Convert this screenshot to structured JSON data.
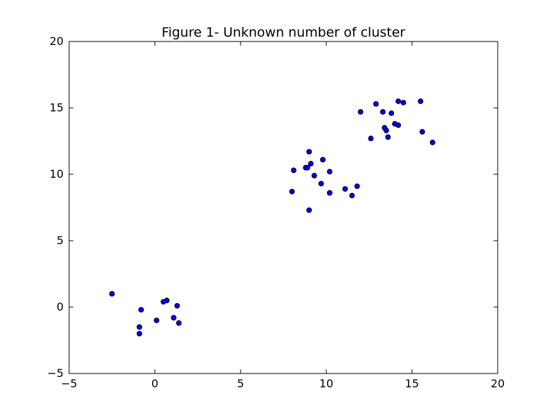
{
  "chart_data": {
    "type": "scatter",
    "title": "Figure 1- Unknown number of cluster",
    "xlabel": "",
    "ylabel": "",
    "xlim": [
      -5,
      20
    ],
    "ylim": [
      -5,
      20
    ],
    "xticks": [
      -5,
      0,
      5,
      10,
      15,
      20
    ],
    "yticks": [
      -5,
      0,
      5,
      10,
      15,
      20
    ],
    "grid": false,
    "legend": "none",
    "marker_color": "#0000ff",
    "series": [
      {
        "points": [
          {
            "x": -2.5,
            "y": 1.0
          },
          {
            "x": -0.8,
            "y": -0.2
          },
          {
            "x": -0.9,
            "y": -1.5
          },
          {
            "x": -0.9,
            "y": -2.0
          },
          {
            "x": 0.1,
            "y": -1.0
          },
          {
            "x": 0.5,
            "y": 0.4
          },
          {
            "x": 0.7,
            "y": 0.5
          },
          {
            "x": 1.1,
            "y": -0.8
          },
          {
            "x": 1.3,
            "y": 0.1
          },
          {
            "x": 1.4,
            "y": -1.2
          },
          {
            "x": 8.0,
            "y": 8.7
          },
          {
            "x": 8.1,
            "y": 10.3
          },
          {
            "x": 8.8,
            "y": 10.5
          },
          {
            "x": 8.9,
            "y": 10.5
          },
          {
            "x": 9.0,
            "y": 7.3
          },
          {
            "x": 9.0,
            "y": 11.7
          },
          {
            "x": 9.1,
            "y": 10.8
          },
          {
            "x": 9.3,
            "y": 9.9
          },
          {
            "x": 9.7,
            "y": 9.3
          },
          {
            "x": 9.8,
            "y": 11.1
          },
          {
            "x": 10.2,
            "y": 10.2
          },
          {
            "x": 10.2,
            "y": 8.6
          },
          {
            "x": 11.1,
            "y": 8.9
          },
          {
            "x": 11.5,
            "y": 8.4
          },
          {
            "x": 11.8,
            "y": 9.1
          },
          {
            "x": 12.0,
            "y": 14.7
          },
          {
            "x": 12.6,
            "y": 12.7
          },
          {
            "x": 12.9,
            "y": 15.3
          },
          {
            "x": 13.3,
            "y": 14.7
          },
          {
            "x": 13.4,
            "y": 13.5
          },
          {
            "x": 13.5,
            "y": 13.3
          },
          {
            "x": 13.6,
            "y": 12.8
          },
          {
            "x": 13.8,
            "y": 14.6
          },
          {
            "x": 14.0,
            "y": 13.8
          },
          {
            "x": 14.2,
            "y": 13.7
          },
          {
            "x": 14.2,
            "y": 15.5
          },
          {
            "x": 14.5,
            "y": 15.4
          },
          {
            "x": 15.5,
            "y": 15.5
          },
          {
            "x": 15.6,
            "y": 13.2
          },
          {
            "x": 16.2,
            "y": 12.4
          }
        ]
      }
    ]
  }
}
